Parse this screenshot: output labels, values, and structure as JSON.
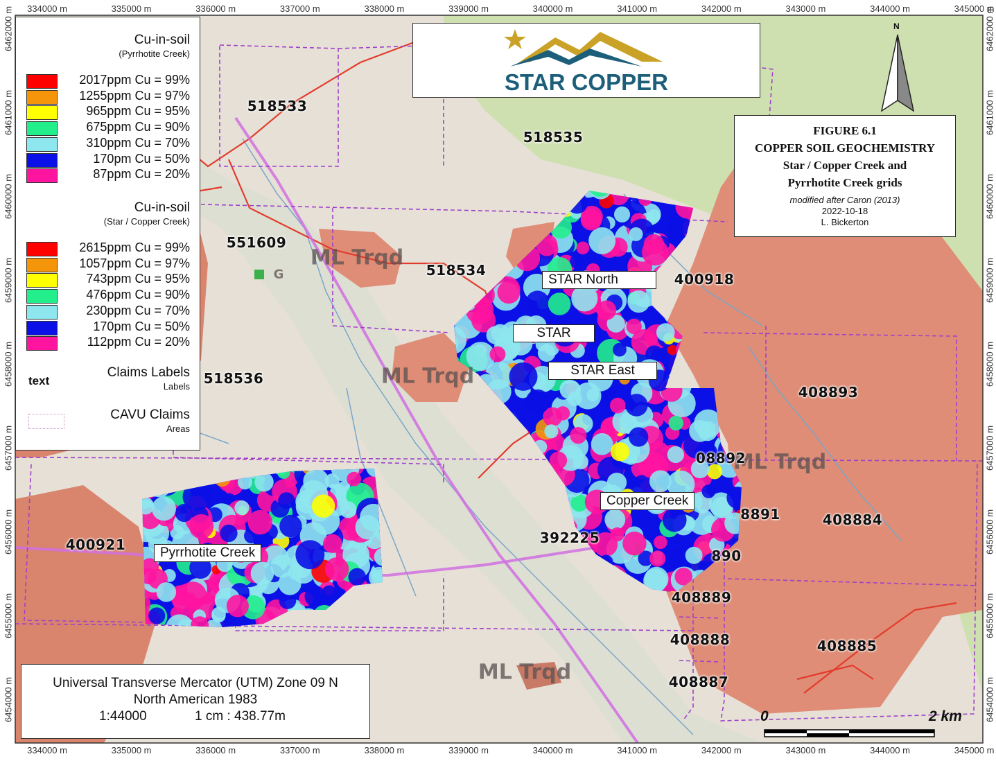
{
  "axes": {
    "x_ticks": [
      "334000 m",
      "335000 m",
      "336000 m",
      "337000 m",
      "338000 m",
      "339000 m",
      "340000 m",
      "341000 m",
      "342000 m",
      "343000 m",
      "344000 m",
      "345000 m"
    ],
    "y_ticks": [
      "6462000 m",
      "6461000 m",
      "6460000 m",
      "6459000 m",
      "6458000 m",
      "6457000 m",
      "6456000 m",
      "6455000 m",
      "6454000 m"
    ]
  },
  "logo": {
    "text": "STAR COPPER",
    "colors": {
      "star": "#c9a227",
      "mountain_gold": "#c9a227",
      "mountain_teal": "#1d5f7a",
      "text": "#1d5f7a"
    }
  },
  "title_box": {
    "figure": "FIGURE 6.1",
    "title": "COPPER SOIL GEOCHEMISTRY",
    "subtitle_1": "Star / Copper Creek and",
    "subtitle_2": "Pyrrhotite Creek grids",
    "credit": "modified after Caron (2013)",
    "date": "2022-10-18",
    "author": "L. Bickerton"
  },
  "north_arrow": {
    "label": "N"
  },
  "legend": {
    "pyrrhotite": {
      "title": "Cu-in-soil",
      "subtitle": "(Pyrrhotite Creek)",
      "items": [
        {
          "label": "2017ppm Cu = 99%",
          "color": "#ff0000"
        },
        {
          "label": "1255ppm Cu = 97%",
          "color": "#f5960a"
        },
        {
          "label": "965ppm Cu = 95%",
          "color": "#ffff00"
        },
        {
          "label": "675ppm Cu = 90%",
          "color": "#22ee8c"
        },
        {
          "label": "310ppm Cu = 70%",
          "color": "#8ee6ee"
        },
        {
          "label": "170pm Cu = 50%",
          "color": "#0a10e6"
        },
        {
          "label": "87ppm Cu = 20%",
          "color": "#ff14a0"
        }
      ]
    },
    "star": {
      "title": "Cu-in-soil",
      "subtitle": "(Star / Copper Creek)",
      "items": [
        {
          "label": "2615ppm Cu = 99%",
          "color": "#ff0000"
        },
        {
          "label": "1057ppm Cu = 97%",
          "color": "#f5960a"
        },
        {
          "label": "743ppm Cu = 95%",
          "color": "#ffff00"
        },
        {
          "label": "476ppm Cu = 90%",
          "color": "#22ee8c"
        },
        {
          "label": "230ppm Cu = 70%",
          "color": "#8ee6ee"
        },
        {
          "label": "170pm Cu = 50%",
          "color": "#0a10e6"
        },
        {
          "label": "112ppm Cu = 20%",
          "color": "#ff14a0"
        }
      ]
    },
    "claims_labels": {
      "sample": "text",
      "title": "Claims Labels",
      "subtitle": "Labels"
    },
    "cavu_claims": {
      "title": "CAVU Claims",
      "subtitle": "Areas",
      "color": "#c070d0"
    }
  },
  "grid_labels": {
    "star_north": "STAR North",
    "star": "STAR",
    "star_east": "STAR East",
    "copper_creek": "Copper Creek",
    "pyrrhotite_creek": "Pyrrhotite Creek"
  },
  "claims": [
    "518533",
    "518535",
    "551609",
    "518534",
    "400918",
    "518536",
    "408893",
    "08892",
    "8891",
    "408884",
    "400921",
    "392225",
    "890",
    "408889",
    "408888",
    "408885",
    "408887"
  ],
  "geology_labels": [
    "ML Trqd",
    "ML Trqd",
    "ML Trqd",
    "ML Trqd",
    "G"
  ],
  "projection": {
    "line1": "Universal Transverse Mercator (UTM) Zone 09 N",
    "line2": "North American 1983",
    "scale": "1:44000",
    "ratio": "1 cm : 438.77m"
  },
  "scale_bar": {
    "start": "0",
    "end": "2 km"
  },
  "colors": {
    "terrain": "#e6e0d6",
    "forest": "#cfe0b0",
    "intrusive": "#df8d76",
    "claim_boundary": "#a040c8",
    "road": "#e23c2c",
    "powerline": "#d070e0",
    "stream": "#7aa6c8"
  }
}
